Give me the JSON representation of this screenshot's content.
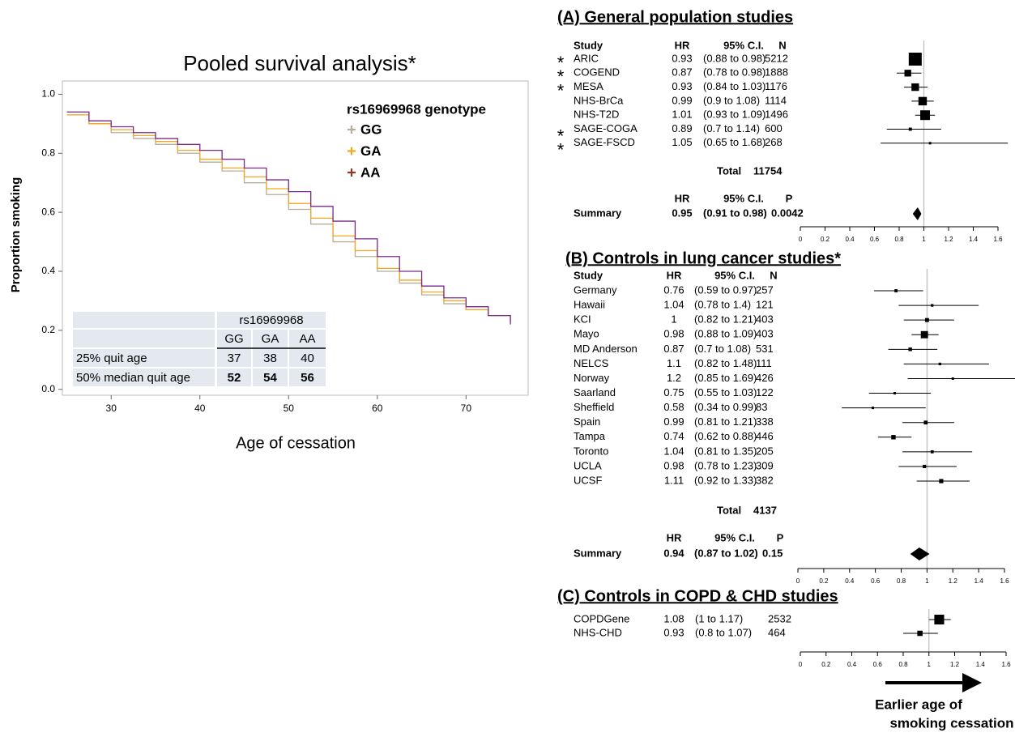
{
  "chart_data": [
    {
      "type": "step",
      "title": "Pooled survival analysis*",
      "xlabel": "Age of cessation",
      "ylabel": "Proportion smoking",
      "xlim": [
        24.5,
        77
      ],
      "ylim": [
        -0.02,
        1.045
      ],
      "xticks": [
        30,
        40,
        50,
        60,
        70
      ],
      "yticks": [
        {
          "value": 0,
          "label": "0.0"
        },
        0.2,
        0.4,
        0.6,
        0.8,
        {
          "value": 1,
          "label": "1.0"
        }
      ],
      "legend_title": "rs16969968 genotype",
      "x": [
        25,
        27.5,
        30,
        32.5,
        35,
        37.5,
        40,
        42.5,
        45,
        47.5,
        50,
        52.5,
        55,
        57.5,
        60,
        62.5,
        65,
        67.5,
        70,
        72.5,
        75
      ],
      "series": [
        {
          "name": "GG",
          "color": "#b8ad98",
          "values": [
            0.93,
            0.9,
            0.87,
            0.85,
            0.83,
            0.8,
            0.77,
            0.74,
            0.7,
            0.66,
            0.61,
            0.56,
            0.5,
            0.45,
            0.4,
            0.36,
            0.32,
            0.29,
            0.27,
            0.25,
            0.23
          ]
        },
        {
          "name": "GA",
          "color": "#f3a823",
          "values": [
            0.93,
            0.9,
            0.88,
            0.86,
            0.84,
            0.81,
            0.78,
            0.75,
            0.72,
            0.68,
            0.63,
            0.58,
            0.52,
            0.47,
            0.41,
            0.37,
            0.33,
            0.3,
            0.27,
            0.25,
            0.23
          ]
        },
        {
          "name": "AA",
          "color": "#8a3a2a",
          "line_color": "#7a2a8a",
          "values": [
            0.94,
            0.91,
            0.89,
            0.87,
            0.85,
            0.83,
            0.81,
            0.78,
            0.75,
            0.71,
            0.67,
            0.62,
            0.57,
            0.51,
            0.45,
            0.4,
            0.35,
            0.31,
            0.28,
            0.25,
            0.22
          ]
        }
      ],
      "table": {
        "header": "rs16969968",
        "columns": [
          "GG",
          "GA",
          "AA"
        ],
        "rows": [
          {
            "label": "25% quit age",
            "values": [
              37,
              38,
              40
            ]
          },
          {
            "label": "50% median quit age",
            "values": [
              52,
              54,
              56
            ]
          }
        ]
      }
    },
    {
      "type": "forest",
      "title": "(A) General population studies",
      "columns": [
        "Study",
        "HR",
        "95% C.I.",
        "N"
      ],
      "studies": [
        "ARIC",
        "COGEND",
        "MESA",
        "NHS-BrCa",
        "NHS-T2D",
        "SAGE-COGA",
        "SAGE-FSCD"
      ],
      "flags": [
        "*",
        "*",
        "*",
        null,
        null,
        "*",
        "*"
      ],
      "hr": [
        0.93,
        0.87,
        0.93,
        0.99,
        1.01,
        0.89,
        1.05
      ],
      "ci_low": [
        0.88,
        0.78,
        0.84,
        0.9,
        0.93,
        0.7,
        0.65
      ],
      "ci_high": [
        0.98,
        0.98,
        1.03,
        1.08,
        1.09,
        1.14,
        1.68
      ],
      "ci_labels": [
        "(0.88 to 0.98)",
        "(0.78 to 0.98)",
        "(0.84 to 1.03)",
        "(0.9 to 1.08)",
        "(0.93 to 1.09)",
        "(0.7 to 1.14)",
        "(0.65 to 1.68)"
      ],
      "n": [
        5212,
        1888,
        1176,
        1114,
        1496,
        600,
        268
      ],
      "total": {
        "label": "Total",
        "value": 11754
      },
      "summary_columns": [
        "HR",
        "95% C.I.",
        "P"
      ],
      "summary": {
        "label": "Summary",
        "hr": 0.95,
        "ci_low": 0.91,
        "ci_high": 0.98,
        "ci_label": "(0.91 to 0.98)",
        "p": 0.0042
      },
      "ref_value": 1,
      "xlim": [
        0,
        1.6
      ],
      "xticks": [
        0,
        0.2,
        0.4,
        0.6,
        0.8,
        1,
        1.2,
        1.4,
        1.6
      ]
    },
    {
      "type": "forest",
      "title": "(B) Controls in lung cancer studies*",
      "columns": [
        "Study",
        "HR",
        "95% C.I.",
        "N"
      ],
      "studies": [
        "Germany",
        "Hawaii",
        "KCI",
        "Mayo",
        "MD Anderson",
        "NELCS",
        "Norway",
        "Saarland",
        "Sheffield",
        "Spain",
        "Tampa",
        "Toronto",
        "UCLA",
        "UCSF"
      ],
      "hr": [
        0.76,
        1.04,
        1,
        0.98,
        0.87,
        1.1,
        1.2,
        0.75,
        0.58,
        0.99,
        0.74,
        1.04,
        0.98,
        1.11
      ],
      "ci_low": [
        0.59,
        0.78,
        0.82,
        0.88,
        0.7,
        0.82,
        0.85,
        0.55,
        0.34,
        0.81,
        0.62,
        0.81,
        0.78,
        0.92
      ],
      "ci_high": [
        0.97,
        1.4,
        1.21,
        1.09,
        1.08,
        1.48,
        1.69,
        1.03,
        0.99,
        1.21,
        0.88,
        1.35,
        1.23,
        1.33
      ],
      "ci_labels": [
        "(0.59 to 0.97)",
        "(0.78 to 1.4)",
        "(0.82 to 1.21)",
        "(0.88 to 1.09)",
        "(0.7 to 1.08)",
        "(0.82 to 1.48)",
        "(0.85 to 1.69)",
        "(0.55 to 1.03)",
        "(0.34 to 0.99)",
        "(0.81 to 1.21)",
        "(0.62 to 0.88)",
        "(0.81 to 1.35)",
        "(0.78 to 1.23)",
        "(0.92 to 1.33)"
      ],
      "n": [
        257,
        121,
        403,
        403,
        531,
        111,
        426,
        122,
        83,
        338,
        446,
        205,
        309,
        382
      ],
      "total": {
        "label": "Total",
        "value": 4137
      },
      "summary_columns": [
        "HR",
        "95% C.I.",
        "P"
      ],
      "summary": {
        "label": "Summary",
        "hr": 0.94,
        "ci_low": 0.87,
        "ci_high": 1.02,
        "ci_label": "(0.87 to 1.02)",
        "p": 0.15
      },
      "ref_value": 1,
      "xlim": [
        0,
        1.6
      ],
      "xticks": [
        0,
        0.2,
        0.4,
        0.6,
        0.8,
        1,
        1.2,
        1.4,
        1.6
      ]
    },
    {
      "type": "forest",
      "title": "(C) Controls in COPD & CHD studies",
      "studies": [
        "COPDGene",
        "NHS-CHD"
      ],
      "hr": [
        1.08,
        0.93
      ],
      "ci_low": [
        1,
        0.8
      ],
      "ci_high": [
        1.17,
        1.07
      ],
      "ci_labels": [
        "(1 to 1.17)",
        "(0.8 to 1.07)"
      ],
      "n": [
        2532,
        464
      ],
      "ref_value": 1,
      "xlim": [
        0,
        1.6
      ],
      "xticks": [
        0,
        0.2,
        0.4,
        0.6,
        0.8,
        1,
        1.2,
        1.4,
        1.6
      ],
      "annotation": [
        "Earlier age of",
        "smoking cessation"
      ]
    }
  ]
}
